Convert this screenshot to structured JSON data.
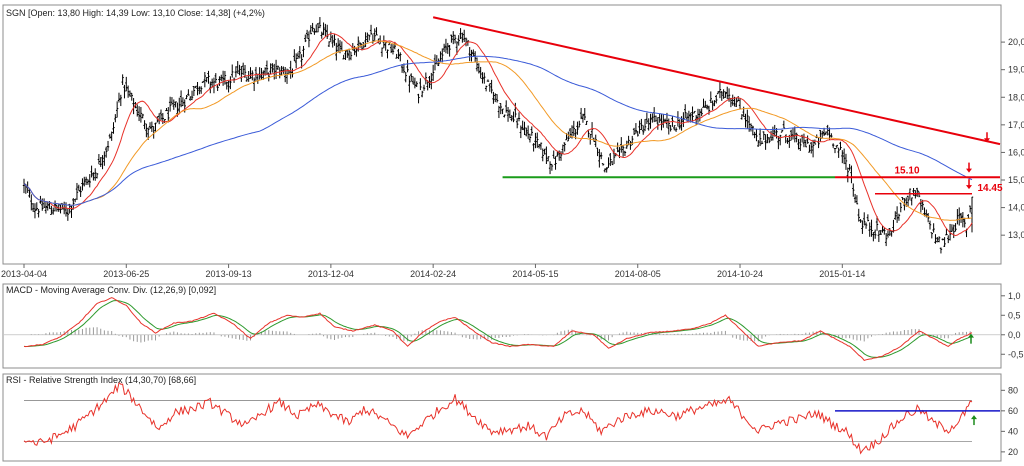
{
  "chart_data": [
    {
      "type": "candlestick",
      "title": "SGN [Open: 13,80  High: 14,39  Low: 13,10  Close: 14,38]  (+4,2%)",
      "ylim": [
        12.1,
        21.2
      ],
      "ytick_values": [
        13.0,
        14.0,
        15.0,
        16.0,
        17.0,
        18.0,
        19.0,
        20.0
      ],
      "ytick_labels": [
        "13,0",
        "14,0",
        "15,0",
        "16,0",
        "17,0",
        "18,0",
        "19,0",
        "20,0"
      ],
      "x_tick_labels": [
        "2013-04-04",
        "2013-06-25",
        "2013-09-13",
        "2013-12-04",
        "2014-02-24",
        "2014-05-15",
        "2014-08-05",
        "2014-10-24",
        "2015-01-14"
      ],
      "x_tick_index": [
        0,
        56,
        112,
        168,
        224,
        280,
        336,
        392,
        448
      ],
      "n_bars": 520,
      "price_keypoints": [
        [
          0,
          14.8
        ],
        [
          6,
          14.0
        ],
        [
          14,
          14.0
        ],
        [
          24,
          13.9
        ],
        [
          32,
          14.8
        ],
        [
          40,
          15.4
        ],
        [
          48,
          16.6
        ],
        [
          54,
          18.5
        ],
        [
          62,
          17.5
        ],
        [
          70,
          16.8
        ],
        [
          80,
          17.5
        ],
        [
          88,
          17.9
        ],
        [
          98,
          18.6
        ],
        [
          108,
          18.5
        ],
        [
          118,
          18.9
        ],
        [
          128,
          18.8
        ],
        [
          138,
          19.0
        ],
        [
          146,
          18.9
        ],
        [
          152,
          19.5
        ],
        [
          158,
          20.6
        ],
        [
          166,
          20.2
        ],
        [
          174,
          19.6
        ],
        [
          182,
          19.8
        ],
        [
          190,
          20.3
        ],
        [
          196,
          20.0
        ],
        [
          204,
          19.6
        ],
        [
          210,
          18.8
        ],
        [
          216,
          18.2
        ],
        [
          220,
          18.6
        ],
        [
          226,
          19.1
        ],
        [
          232,
          19.9
        ],
        [
          240,
          20.3
        ],
        [
          246,
          19.5
        ],
        [
          252,
          18.6
        ],
        [
          262,
          17.6
        ],
        [
          272,
          17.0
        ],
        [
          282,
          16.2
        ],
        [
          290,
          15.6
        ],
        [
          298,
          16.5
        ],
        [
          306,
          17.2
        ],
        [
          312,
          16.6
        ],
        [
          318,
          15.4
        ],
        [
          326,
          15.9
        ],
        [
          336,
          16.8
        ],
        [
          346,
          17.2
        ],
        [
          354,
          16.9
        ],
        [
          364,
          17.3
        ],
        [
          374,
          17.6
        ],
        [
          384,
          18.3
        ],
        [
          390,
          17.8
        ],
        [
          396,
          17.2
        ],
        [
          402,
          16.3
        ],
        [
          408,
          16.6
        ],
        [
          416,
          16.7
        ],
        [
          424,
          16.4
        ],
        [
          432,
          16.2
        ],
        [
          440,
          16.8
        ],
        [
          446,
          16.1
        ],
        [
          452,
          15.4
        ],
        [
          458,
          13.5
        ],
        [
          466,
          13.2
        ],
        [
          474,
          13.0
        ],
        [
          482,
          14.3
        ],
        [
          488,
          14.6
        ],
        [
          494,
          13.6
        ],
        [
          502,
          12.6
        ],
        [
          508,
          13.2
        ],
        [
          512,
          13.6
        ],
        [
          516,
          13.3
        ],
        [
          519,
          14.38
        ]
      ],
      "moving_averages": [
        {
          "name": "MA short",
          "color": "#e8322a"
        },
        {
          "name": "MA mid",
          "color": "#f29a26"
        },
        {
          "name": "MA long",
          "color": "#3b5bd8"
        }
      ],
      "annotations": {
        "trendline": {
          "color": "#e8000b",
          "from": [
            224,
            20.9
          ],
          "to": [
            540,
            16.3
          ]
        },
        "support_line": {
          "color": "#1a9c1a",
          "y": 15.1,
          "from_index": 262
        },
        "resistance_line": {
          "color": "#e8000b",
          "y": 15.1,
          "label": "15.10"
        },
        "level_line": {
          "color": "#e8000b",
          "y": 14.5,
          "label": "14.45"
        },
        "arrows": [
          "down",
          "down",
          "down"
        ]
      }
    },
    {
      "type": "line",
      "title": "MACD - Moving Average Conv. Div. (12,26,9) [0,092]",
      "ylim": [
        -0.75,
        1.2
      ],
      "ytick_values": [
        -0.5,
        0.0,
        0.5,
        1.0
      ],
      "ytick_labels": [
        "-0,5",
        "0,0",
        "0,5",
        "1,0"
      ],
      "macd_keypoints": [
        [
          0,
          -0.3
        ],
        [
          10,
          -0.25
        ],
        [
          20,
          -0.05
        ],
        [
          30,
          0.3
        ],
        [
          40,
          0.8
        ],
        [
          48,
          0.95
        ],
        [
          56,
          0.75
        ],
        [
          64,
          0.3
        ],
        [
          72,
          0.05
        ],
        [
          82,
          0.3
        ],
        [
          92,
          0.35
        ],
        [
          104,
          0.55
        ],
        [
          114,
          0.3
        ],
        [
          124,
          -0.1
        ],
        [
          134,
          0.3
        ],
        [
          144,
          0.5
        ],
        [
          152,
          0.45
        ],
        [
          162,
          0.55
        ],
        [
          170,
          0.2
        ],
        [
          180,
          0.1
        ],
        [
          192,
          0.25
        ],
        [
          202,
          0.1
        ],
        [
          210,
          -0.3
        ],
        [
          218,
          0.05
        ],
        [
          228,
          0.35
        ],
        [
          236,
          0.45
        ],
        [
          246,
          0.1
        ],
        [
          256,
          -0.2
        ],
        [
          266,
          -0.3
        ],
        [
          276,
          -0.25
        ],
        [
          290,
          -0.3
        ],
        [
          300,
          0.1
        ],
        [
          312,
          0.0
        ],
        [
          320,
          -0.35
        ],
        [
          330,
          -0.1
        ],
        [
          342,
          0.05
        ],
        [
          356,
          0.1
        ],
        [
          366,
          0.15
        ],
        [
          376,
          0.3
        ],
        [
          384,
          0.5
        ],
        [
          392,
          0.15
        ],
        [
          402,
          -0.3
        ],
        [
          412,
          -0.2
        ],
        [
          426,
          -0.15
        ],
        [
          436,
          0.1
        ],
        [
          444,
          -0.1
        ],
        [
          452,
          -0.3
        ],
        [
          460,
          -0.65
        ],
        [
          470,
          -0.55
        ],
        [
          480,
          -0.3
        ],
        [
          490,
          0.1
        ],
        [
          498,
          -0.1
        ],
        [
          506,
          -0.3
        ],
        [
          512,
          -0.1
        ],
        [
          519,
          0.05
        ]
      ],
      "series": [
        {
          "name": "MACD",
          "color": "#e8322a"
        },
        {
          "name": "Signal",
          "color": "#2e9a2e"
        },
        {
          "name": "Histogram",
          "color": "#9a9a9a"
        }
      ],
      "arrow": "up"
    },
    {
      "type": "line",
      "title": "RSI - Relative Strength Index (14,30,70) [68,66]",
      "ylim": [
        15,
        92
      ],
      "ytick_values": [
        20,
        40,
        60,
        80
      ],
      "ytick_labels": [
        "20",
        "40",
        "60",
        "80"
      ],
      "reference_lines": [
        30,
        70
      ],
      "rsi_keypoints": [
        [
          0,
          32
        ],
        [
          8,
          28
        ],
        [
          18,
          35
        ],
        [
          28,
          45
        ],
        [
          38,
          60
        ],
        [
          46,
          72
        ],
        [
          52,
          85
        ],
        [
          58,
          75
        ],
        [
          66,
          58
        ],
        [
          74,
          42
        ],
        [
          82,
          58
        ],
        [
          92,
          62
        ],
        [
          102,
          68
        ],
        [
          112,
          55
        ],
        [
          122,
          45
        ],
        [
          132,
          60
        ],
        [
          140,
          68
        ],
        [
          150,
          55
        ],
        [
          160,
          66
        ],
        [
          168,
          58
        ],
        [
          178,
          48
        ],
        [
          186,
          62
        ],
        [
          194,
          55
        ],
        [
          202,
          45
        ],
        [
          210,
          35
        ],
        [
          218,
          48
        ],
        [
          228,
          62
        ],
        [
          236,
          72
        ],
        [
          246,
          55
        ],
        [
          256,
          40
        ],
        [
          266,
          42
        ],
        [
          276,
          45
        ],
        [
          286,
          35
        ],
        [
          296,
          55
        ],
        [
          306,
          60
        ],
        [
          316,
          40
        ],
        [
          326,
          52
        ],
        [
          336,
          58
        ],
        [
          346,
          60
        ],
        [
          358,
          55
        ],
        [
          368,
          62
        ],
        [
          378,
          66
        ],
        [
          386,
          70
        ],
        [
          394,
          55
        ],
        [
          402,
          40
        ],
        [
          412,
          48
        ],
        [
          424,
          52
        ],
        [
          434,
          58
        ],
        [
          442,
          48
        ],
        [
          450,
          40
        ],
        [
          458,
          22
        ],
        [
          466,
          28
        ],
        [
          474,
          42
        ],
        [
          482,
          55
        ],
        [
          490,
          62
        ],
        [
          498,
          48
        ],
        [
          506,
          42
        ],
        [
          512,
          50
        ],
        [
          519,
          68.66
        ]
      ],
      "series": [
        {
          "name": "RSI",
          "color": "#e8322a"
        }
      ],
      "level_line": {
        "color": "#1414c8",
        "y": 60
      },
      "arrow": "up"
    }
  ]
}
